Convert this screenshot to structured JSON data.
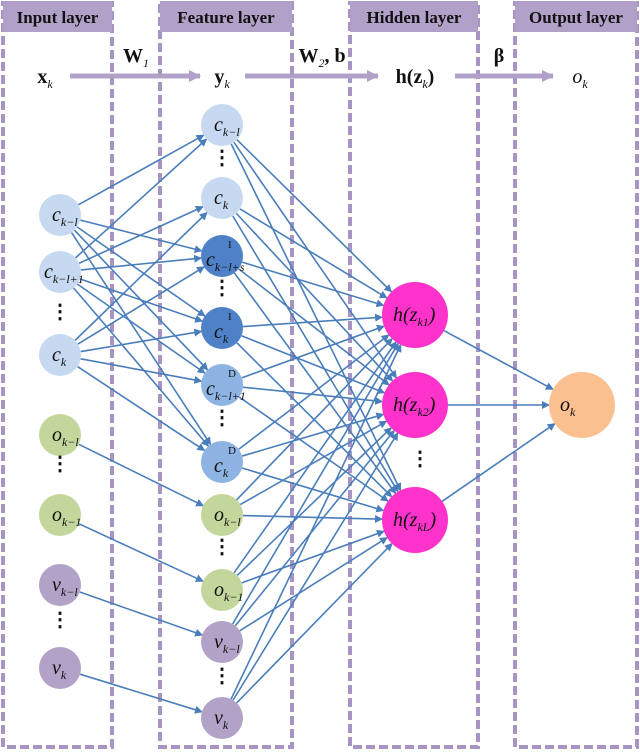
{
  "layers": [
    {
      "id": "input",
      "label": "Input layer"
    },
    {
      "id": "feature",
      "label": "Feature layer"
    },
    {
      "id": "hidden",
      "label": "Hidden layer"
    },
    {
      "id": "output",
      "label": "Output layer"
    }
  ],
  "flow": {
    "x": {
      "main": "x",
      "sub": "k"
    },
    "y": {
      "main": "y",
      "sub": "k"
    },
    "h": {
      "main": "h(z",
      "sub": "k",
      "tail": ")"
    },
    "o": {
      "main": "o",
      "sub": "k"
    },
    "w1": {
      "main": "W",
      "sub": "1"
    },
    "w2": {
      "main": "W",
      "sub": "2",
      "tail": ", b"
    },
    "beta": "β"
  },
  "colors": {
    "border": "#a794c4",
    "header": "#b1a0c8",
    "edge": "#4a7ebb",
    "c_light": "#c6d9f1",
    "c_dark": "#4f81c9",
    "c_mid": "#8eb4e3",
    "o_green": "#c3d69b",
    "v_purple": "#b3a2c7",
    "hidden": "#ff33cc",
    "output": "#fac090"
  },
  "input_nodes": [
    {
      "id": "i_c1",
      "main": "c",
      "sub": "k−l",
      "color": "c_light",
      "group": "c"
    },
    {
      "id": "i_c2",
      "main": "c",
      "sub": "k−l+1",
      "color": "c_light",
      "group": "c"
    },
    {
      "id": "i_c3",
      "main": "c",
      "sub": "k",
      "color": "c_light",
      "group": "c"
    },
    {
      "id": "i_o1",
      "main": "o",
      "sub": "k−l",
      "color": "o_green",
      "group": "o1"
    },
    {
      "id": "i_o2",
      "main": "o",
      "sub": "k−1",
      "color": "o_green",
      "group": "o2"
    },
    {
      "id": "i_v1",
      "main": "v",
      "sub": "k−l",
      "color": "v_purple",
      "group": "v1"
    },
    {
      "id": "i_v2",
      "main": "v",
      "sub": "k",
      "color": "v_purple",
      "group": "v2"
    }
  ],
  "feature_nodes": [
    {
      "id": "f_c1",
      "main": "c",
      "sub": "k−l",
      "color": "c_light",
      "group": "c"
    },
    {
      "id": "f_c2",
      "main": "c",
      "sub": "k",
      "color": "c_light",
      "group": "c"
    },
    {
      "id": "f_ci1",
      "main": "c",
      "sub": "k−l+s",
      "sup": "I",
      "color": "c_dark",
      "group": "c"
    },
    {
      "id": "f_ci2",
      "main": "c",
      "sub": "k",
      "sup": "I",
      "color": "c_dark",
      "group": "c"
    },
    {
      "id": "f_cd1",
      "main": "c",
      "sub": "k−l+1",
      "sup": "D",
      "color": "c_mid",
      "group": "c"
    },
    {
      "id": "f_cd2",
      "main": "c",
      "sub": "k",
      "sup": "D",
      "color": "c_mid",
      "group": "c"
    },
    {
      "id": "f_o1",
      "main": "o",
      "sub": "k−l",
      "color": "o_green",
      "group": "o1"
    },
    {
      "id": "f_o2",
      "main": "o",
      "sub": "k−1",
      "color": "o_green",
      "group": "o2"
    },
    {
      "id": "f_v1",
      "main": "v",
      "sub": "k−l",
      "color": "v_purple",
      "group": "v1"
    },
    {
      "id": "f_v2",
      "main": "v",
      "sub": "k",
      "color": "v_purple",
      "group": "v2"
    }
  ],
  "hidden_nodes": [
    {
      "id": "h1",
      "main": "h(z",
      "sub": "k1",
      "tail": ")",
      "color": "hidden"
    },
    {
      "id": "h2",
      "main": "h(z",
      "sub": "k2",
      "tail": ")",
      "color": "hidden"
    },
    {
      "id": "h3",
      "main": "h(z",
      "sub": "kL",
      "tail": ")",
      "color": "hidden"
    }
  ],
  "output_nodes": [
    {
      "id": "out",
      "main": "o",
      "sub": "k",
      "color": "output"
    }
  ],
  "ellipsis": "⋮"
}
